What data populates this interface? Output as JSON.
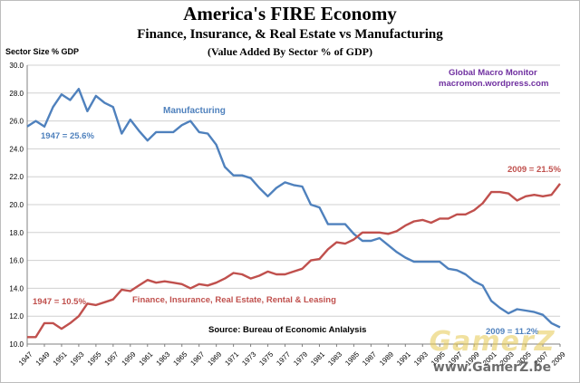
{
  "chart_data": {
    "type": "line",
    "title": "America's FIRE Economy",
    "subtitle": "Finance, Insurance, & Real Estate vs Manufacturing",
    "subtitle2": "(Value Added By Sector % of GDP)",
    "ylabel": "Sector Size % GDP",
    "xlabel": "",
    "ylim": [
      10.0,
      30.0
    ],
    "yticks": [
      "10.0",
      "12.0",
      "14.0",
      "16.0",
      "18.0",
      "20.0",
      "22.0",
      "24.0",
      "26.0",
      "28.0",
      "30.0"
    ],
    "xticks": [
      "1947",
      "1949",
      "1951",
      "1953",
      "1955",
      "1957",
      "1959",
      "1961",
      "1963",
      "1965",
      "1967",
      "1969",
      "1971",
      "1973",
      "1975",
      "1977",
      "1979",
      "1981",
      "1983",
      "1985",
      "1987",
      "1989",
      "1991",
      "1993",
      "1995",
      "1997",
      "1999",
      "2001",
      "2003",
      "2005",
      "2007",
      "2009"
    ],
    "x": [
      1947,
      1948,
      1949,
      1950,
      1951,
      1952,
      1953,
      1954,
      1955,
      1956,
      1957,
      1958,
      1959,
      1960,
      1961,
      1962,
      1963,
      1964,
      1965,
      1966,
      1967,
      1968,
      1969,
      1970,
      1971,
      1972,
      1973,
      1974,
      1975,
      1976,
      1977,
      1978,
      1979,
      1980,
      1981,
      1982,
      1983,
      1984,
      1985,
      1986,
      1987,
      1988,
      1989,
      1990,
      1991,
      1992,
      1993,
      1994,
      1995,
      1996,
      1997,
      1998,
      1999,
      2000,
      2001,
      2002,
      2003,
      2004,
      2005,
      2006,
      2007,
      2008,
      2009
    ],
    "grid": true,
    "legend": "none",
    "series": [
      {
        "name": "Manufacturing",
        "color": "#4f81bd",
        "values": [
          25.6,
          26.0,
          25.6,
          27.0,
          27.9,
          27.5,
          28.3,
          26.7,
          27.8,
          27.3,
          27.0,
          25.1,
          26.1,
          25.3,
          24.6,
          25.2,
          25.2,
          25.2,
          25.7,
          26.0,
          25.2,
          25.1,
          24.3,
          22.7,
          22.1,
          22.1,
          21.9,
          21.2,
          20.6,
          21.2,
          21.6,
          21.4,
          21.3,
          20.0,
          19.8,
          18.6,
          18.6,
          18.6,
          17.9,
          17.4,
          17.4,
          17.6,
          17.1,
          16.6,
          16.2,
          15.9,
          15.9,
          15.9,
          15.9,
          15.4,
          15.3,
          15.0,
          14.5,
          14.2,
          13.1,
          12.6,
          12.2,
          12.5,
          12.4,
          12.3,
          12.1,
          11.5,
          11.2
        ]
      },
      {
        "name": "Finance, Insurance, Real Estate, Rental & Leasing",
        "color": "#c0504d",
        "values": [
          10.5,
          10.5,
          11.5,
          11.5,
          11.1,
          11.5,
          12.0,
          12.9,
          12.8,
          13.0,
          13.2,
          13.9,
          13.8,
          14.2,
          14.6,
          14.4,
          14.5,
          14.4,
          14.3,
          14.0,
          14.3,
          14.2,
          14.4,
          14.7,
          15.1,
          15.0,
          14.7,
          14.9,
          15.2,
          15.0,
          15.0,
          15.2,
          15.4,
          16.0,
          16.1,
          16.8,
          17.3,
          17.2,
          17.5,
          18.0,
          18.0,
          18.0,
          17.9,
          18.1,
          18.5,
          18.8,
          18.9,
          18.7,
          19.0,
          19.0,
          19.3,
          19.3,
          19.6,
          20.1,
          20.9,
          20.9,
          20.8,
          20.3,
          20.6,
          20.7,
          20.6,
          20.7,
          21.5
        ]
      }
    ],
    "annotations": {
      "manufacturing_label": "Manufacturing",
      "fire_label": "Finance, Insurance, Real Estate, Rental  & Leasing",
      "mfg_1947": "1947 = 25.6%",
      "mfg_2009": "2009 = 11.2%",
      "fire_1947": "1947 = 10.5%",
      "fire_2009": "2009 = 21.5%",
      "source": "Source:  Bureau of Economic Anlalysis",
      "brand_line1": "Global Macro Monitor",
      "brand_line2": "macromon.wordpress.com"
    }
  },
  "watermark": {
    "text": "GamerZ",
    "url": "www.GamerZ.be"
  }
}
